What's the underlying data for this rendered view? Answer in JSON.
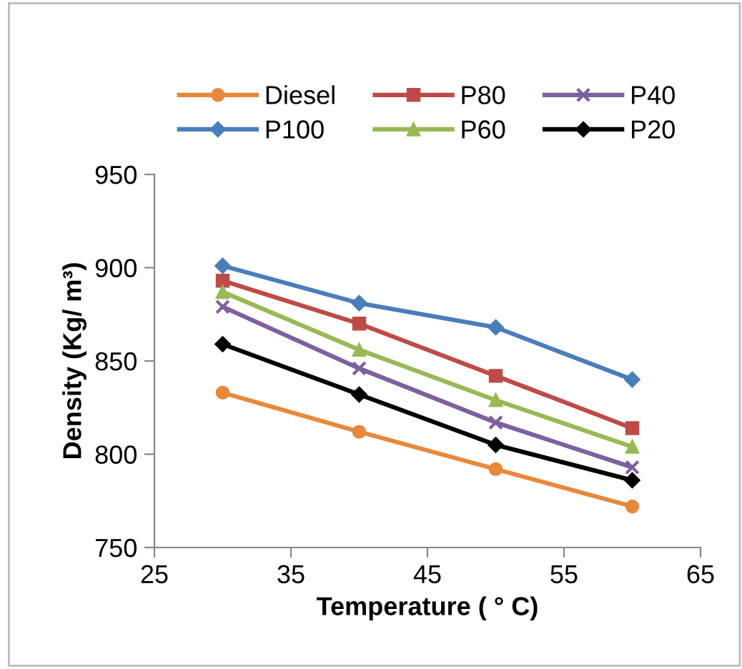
{
  "chart_data": {
    "type": "line",
    "xlabel": "Temperature ( ° C)",
    "ylabel": "Density (Kg/ m³)",
    "x": [
      30,
      40,
      50,
      60
    ],
    "xlim": [
      25,
      65
    ],
    "xticks": [
      25,
      35,
      45,
      55,
      65
    ],
    "ylim": [
      750,
      950
    ],
    "yticks": [
      750,
      800,
      850,
      900,
      950
    ],
    "grid": false,
    "legend": "top",
    "line_style": "solid",
    "series": [
      {
        "name": "Diesel",
        "color": "#e8883a",
        "marker": "circle",
        "values": [
          833,
          812,
          792,
          772
        ]
      },
      {
        "name": "P100",
        "color": "#4a7dbb",
        "marker": "diamond",
        "values": [
          901,
          881,
          868,
          840
        ]
      },
      {
        "name": "P80",
        "color": "#be4b48",
        "marker": "square",
        "values": [
          893,
          870,
          842,
          814
        ]
      },
      {
        "name": "P60",
        "color": "#98b954",
        "marker": "triangle",
        "values": [
          887,
          856,
          829,
          804
        ]
      },
      {
        "name": "P40",
        "color": "#7d60a0",
        "marker": "cross",
        "values": [
          879,
          846,
          817,
          793
        ]
      },
      {
        "name": "P20",
        "color": "#000000",
        "marker": "diamond",
        "values": [
          859,
          832,
          805,
          786
        ]
      }
    ]
  }
}
